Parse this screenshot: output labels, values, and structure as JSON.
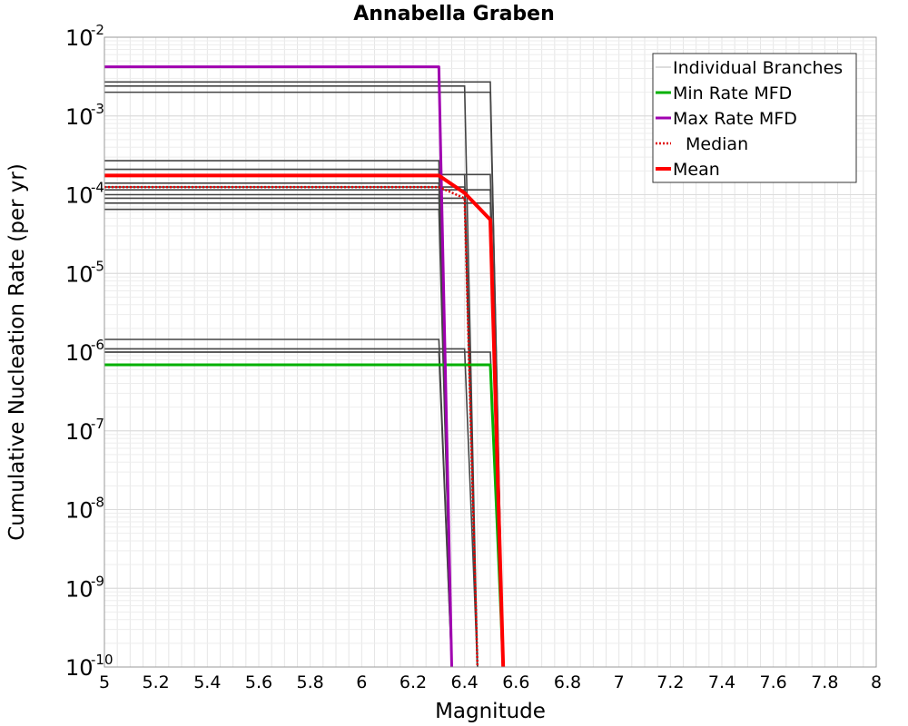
{
  "chart_data": {
    "type": "line",
    "title": "Annabella Graben",
    "xlabel": "Magnitude",
    "ylabel": "Cumulative Nucleation Rate (per yr)",
    "xlim": [
      5,
      8
    ],
    "ylim": [
      1e-10,
      0.01
    ],
    "yscale": "log",
    "grid": true,
    "legend_position": "top-right",
    "x_ticks": [
      "5",
      "5.2",
      "5.4",
      "5.6",
      "5.8",
      "6",
      "6.2",
      "6.4",
      "6.6",
      "6.8",
      "7",
      "7.2",
      "7.4",
      "7.6",
      "7.8",
      "8"
    ],
    "y_ticks": [
      {
        "base": "10",
        "exp": "-2"
      },
      {
        "base": "10",
        "exp": "-3"
      },
      {
        "base": "10",
        "exp": "-4"
      },
      {
        "base": "10",
        "exp": "-5"
      },
      {
        "base": "10",
        "exp": "-6"
      },
      {
        "base": "10",
        "exp": "-7"
      },
      {
        "base": "10",
        "exp": "-8"
      },
      {
        "base": "10",
        "exp": "-9"
      },
      {
        "base": "10",
        "exp": "-10"
      }
    ],
    "legend": [
      {
        "label": "Individual Branches",
        "color": "#444444",
        "style": "solid-thin"
      },
      {
        "label": "Min Rate MFD",
        "color": "#00b000",
        "style": "solid"
      },
      {
        "label": "Max Rate MFD",
        "color": "#a000b0",
        "style": "solid"
      },
      {
        "label": "Median",
        "color": "#e00000",
        "style": "dotted"
      },
      {
        "label": "Mean",
        "color": "#ff0000",
        "style": "solid-thick"
      }
    ],
    "branches": [
      {
        "x": [
          5.0,
          6.5,
          6.55
        ],
        "y": [
          0.0027,
          0.0027,
          1e-10
        ]
      },
      {
        "x": [
          5.0,
          6.4,
          6.45
        ],
        "y": [
          0.0024,
          0.0024,
          1e-10
        ]
      },
      {
        "x": [
          5.0,
          6.5,
          6.55
        ],
        "y": [
          0.002,
          0.002,
          1e-10
        ]
      },
      {
        "x": [
          5.0,
          6.3,
          6.35
        ],
        "y": [
          0.00027,
          0.00027,
          1e-10
        ]
      },
      {
        "x": [
          5.0,
          6.3,
          6.35
        ],
        "y": [
          0.00021,
          0.00021,
          1e-10
        ]
      },
      {
        "x": [
          5.0,
          6.4,
          6.45
        ],
        "y": [
          0.00018,
          0.00018,
          1e-10
        ]
      },
      {
        "x": [
          5.0,
          6.5,
          6.55
        ],
        "y": [
          0.00018,
          0.00018,
          1e-10
        ]
      },
      {
        "x": [
          5.0,
          6.3,
          6.35
        ],
        "y": [
          0.00014,
          0.00014,
          1e-10
        ]
      },
      {
        "x": [
          5.0,
          6.4,
          6.45
        ],
        "y": [
          0.000125,
          0.000125,
          1e-10
        ]
      },
      {
        "x": [
          5.0,
          6.5,
          6.55
        ],
        "y": [
          0.000115,
          0.000115,
          1e-10
        ]
      },
      {
        "x": [
          5.0,
          6.3,
          6.35
        ],
        "y": [
          0.0001,
          0.0001,
          1e-10
        ]
      },
      {
        "x": [
          5.0,
          6.4,
          6.45
        ],
        "y": [
          9e-05,
          9e-05,
          1e-10
        ]
      },
      {
        "x": [
          5.0,
          6.5,
          6.55
        ],
        "y": [
          7.8e-05,
          7.8e-05,
          1e-10
        ]
      },
      {
        "x": [
          5.0,
          6.3,
          6.35
        ],
        "y": [
          6.5e-05,
          6.5e-05,
          1e-10
        ]
      },
      {
        "x": [
          5.0,
          6.3,
          6.35
        ],
        "y": [
          1.45e-06,
          1.45e-06,
          1e-10
        ]
      },
      {
        "x": [
          5.0,
          6.4,
          6.45
        ],
        "y": [
          1.1e-06,
          1.1e-06,
          1e-10
        ]
      },
      {
        "x": [
          5.0,
          6.3,
          6.35
        ],
        "y": [
          1e-06,
          1e-06,
          1e-10
        ]
      },
      {
        "x": [
          5.0,
          6.5,
          6.55
        ],
        "y": [
          1e-06,
          1e-06,
          1e-10
        ]
      }
    ],
    "series": [
      {
        "name": "Min Rate MFD",
        "x": [
          5.0,
          6.5,
          6.55
        ],
        "y": [
          6.9e-07,
          6.9e-07,
          1e-10
        ]
      },
      {
        "name": "Max Rate MFD",
        "x": [
          5.0,
          6.3,
          6.35
        ],
        "y": [
          0.0042,
          0.0042,
          1e-10
        ]
      },
      {
        "name": "Median",
        "x": [
          5.0,
          6.3,
          6.4,
          6.45
        ],
        "y": [
          0.000125,
          0.000125,
          9e-05,
          1e-10
        ]
      },
      {
        "name": "Mean",
        "x": [
          5.0,
          6.3,
          6.4,
          6.5,
          6.55
        ],
        "y": [
          0.000175,
          0.000175,
          0.000105,
          4.8e-05,
          1e-10
        ]
      }
    ]
  }
}
